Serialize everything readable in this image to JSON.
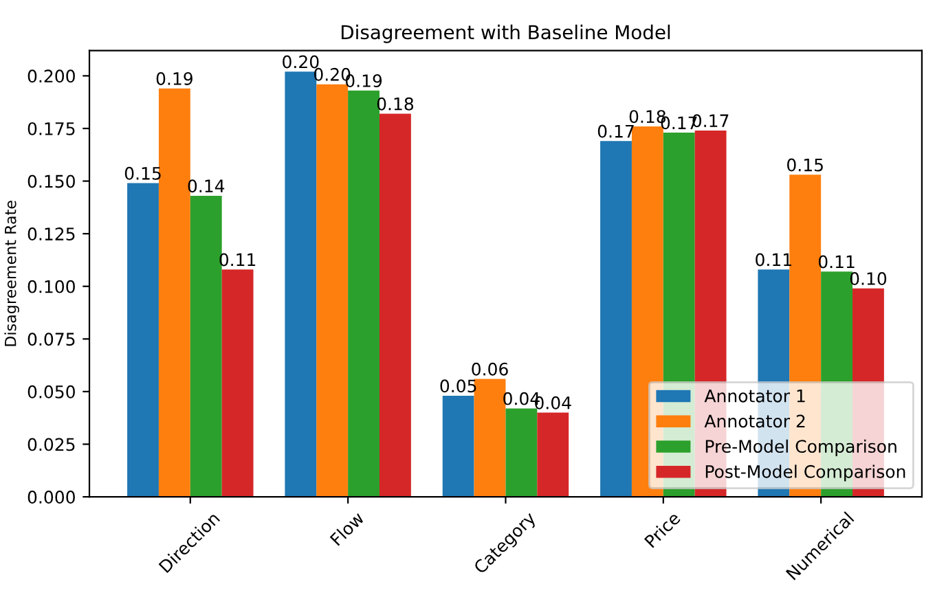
{
  "chart_data": {
    "type": "bar",
    "title": "Disagreement with Baseline Model",
    "ylabel": "Disagreement Rate",
    "categories": [
      "Direction",
      "Flow",
      "Category",
      "Price",
      "Numerical"
    ],
    "series": [
      {
        "name": "Annotator 1",
        "color": "#1f77b4",
        "values": [
          0.149,
          0.202,
          0.048,
          0.169,
          0.108
        ],
        "value_labels": [
          "0.15",
          "0.20",
          "0.05",
          "0.17",
          "0.11"
        ]
      },
      {
        "name": "Annotator 2",
        "color": "#ff7f0e",
        "values": [
          0.194,
          0.196,
          0.056,
          0.176,
          0.153
        ],
        "value_labels": [
          "0.19",
          "0.20",
          "0.06",
          "0.18",
          "0.15"
        ]
      },
      {
        "name": "Pre-Model Comparison",
        "color": "#2ca02c",
        "values": [
          0.143,
          0.193,
          0.042,
          0.173,
          0.107
        ],
        "value_labels": [
          "0.14",
          "0.19",
          "0.04",
          "0.17",
          "0.11"
        ]
      },
      {
        "name": "Post-Model Comparison",
        "color": "#d62728",
        "values": [
          0.108,
          0.182,
          0.04,
          0.174,
          0.099
        ],
        "value_labels": [
          "0.11",
          "0.18",
          "0.04",
          "0.17",
          "0.10"
        ]
      }
    ],
    "ylim": [
      0,
      0.212
    ],
    "yticks": [
      {
        "value": 0,
        "label": "0.000"
      },
      {
        "value": 0.025,
        "label": "0.025"
      },
      {
        "value": 0.05,
        "label": "0.050"
      },
      {
        "value": 0.075,
        "label": "0.075"
      },
      {
        "value": 0.1,
        "label": "0.100"
      },
      {
        "value": 0.125,
        "label": "0.125"
      },
      {
        "value": 0.15,
        "label": "0.150"
      },
      {
        "value": 0.175,
        "label": "0.175"
      },
      {
        "value": 0.2,
        "label": "0.200"
      }
    ],
    "grid": false,
    "legend": "bottom right"
  }
}
